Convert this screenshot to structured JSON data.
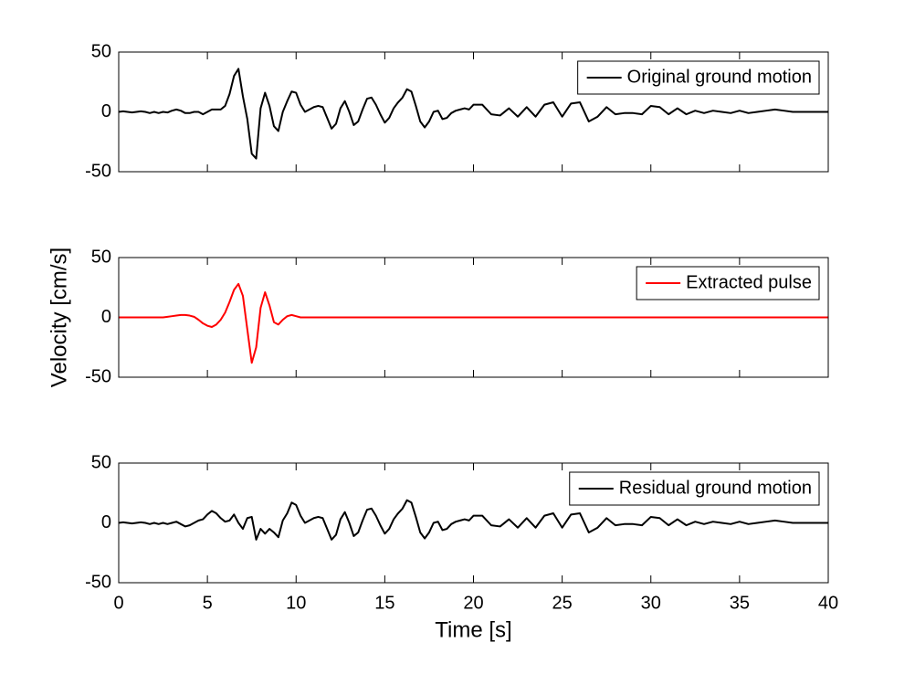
{
  "chart_data": [
    {
      "type": "line",
      "x": [
        0,
        0.25,
        0.5,
        0.75,
        1,
        1.25,
        1.5,
        1.75,
        2,
        2.25,
        2.5,
        2.75,
        3,
        3.25,
        3.5,
        3.75,
        4,
        4.25,
        4.5,
        4.75,
        5,
        5.25,
        5.5,
        5.75,
        6,
        6.25,
        6.5,
        6.75,
        7,
        7.25,
        7.5,
        7.75,
        8,
        8.25,
        8.5,
        8.75,
        9,
        9.25,
        9.5,
        9.75,
        10,
        10.25,
        10.5,
        10.75,
        11,
        11.25,
        11.5,
        11.75,
        12,
        12.25,
        12.5,
        12.75,
        13,
        13.25,
        13.5,
        13.75,
        14,
        14.25,
        14.5,
        14.75,
        15,
        15.25,
        15.5,
        15.75,
        16,
        16.25,
        16.5,
        16.75,
        17,
        17.25,
        17.5,
        17.75,
        18,
        18.25,
        18.5,
        18.75,
        19,
        19.25,
        19.5,
        19.75,
        20,
        20.5,
        21,
        21.5,
        22,
        22.5,
        23,
        23.5,
        24,
        24.5,
        25,
        25.5,
        26,
        26.5,
        27,
        27.5,
        28,
        28.5,
        29,
        29.5,
        30,
        30.5,
        31,
        31.5,
        32,
        32.5,
        33,
        33.5,
        34,
        34.5,
        35,
        35.5,
        36,
        36.5,
        37,
        37.5,
        38,
        38.5,
        39,
        39.5,
        40
      ],
      "series": [
        {
          "name": "Original ground motion",
          "color": "#000000",
          "values": [
            0,
            0.5,
            0,
            -0.5,
            0,
            0.5,
            0,
            -1,
            0,
            -1,
            0,
            -0.5,
            1,
            2,
            1,
            -1,
            -1,
            0,
            0,
            -2,
            0,
            2,
            2,
            2,
            5,
            15,
            30,
            36,
            13,
            -6,
            -35,
            -39,
            3,
            16,
            5,
            -12,
            -16,
            0,
            9,
            17,
            16,
            6,
            0,
            2,
            4,
            5,
            4,
            -5,
            -14,
            -10,
            3,
            9,
            0,
            -11,
            -8,
            2,
            11,
            12,
            6,
            -2,
            -9,
            -5,
            3,
            8,
            12,
            19,
            17,
            5,
            -8,
            -13,
            -8,
            0,
            1,
            -6,
            -5,
            -1,
            1,
            2,
            3,
            2,
            6,
            6,
            -2,
            -3,
            3,
            -4,
            4,
            -4,
            6,
            8,
            -4,
            7,
            8,
            -8,
            -4,
            4,
            -2,
            -1,
            -1,
            -2,
            5,
            4,
            -2,
            3,
            -2,
            1,
            -1,
            1,
            0,
            -1,
            1,
            -1,
            0,
            1,
            2,
            1,
            0,
            0,
            0,
            0,
            0
          ]
        }
      ],
      "xlim": [
        0,
        40
      ],
      "xticks": [
        0,
        5,
        10,
        15,
        20,
        25,
        30,
        35,
        40
      ],
      "ylim": [
        -50,
        50
      ],
      "yticks": [
        -50,
        0,
        50
      ],
      "legend": "upper right"
    },
    {
      "type": "line",
      "x": [
        0,
        0.25,
        0.5,
        0.75,
        1,
        1.25,
        1.5,
        1.75,
        2,
        2.25,
        2.5,
        2.75,
        3,
        3.25,
        3.5,
        3.75,
        4,
        4.25,
        4.5,
        4.75,
        5,
        5.25,
        5.5,
        5.75,
        6,
        6.25,
        6.5,
        6.75,
        7,
        7.25,
        7.5,
        7.75,
        8,
        8.25,
        8.5,
        8.75,
        9,
        9.25,
        9.5,
        9.75,
        10,
        10.25,
        10.5,
        10.75,
        11,
        11.25,
        11.5,
        11.75,
        12,
        12.25,
        12.5,
        12.75,
        13,
        13.25,
        13.5,
        13.75,
        14,
        14.25,
        14.5,
        14.75,
        15,
        15.25,
        15.5,
        15.75,
        16,
        16.25,
        16.5,
        16.75,
        17,
        17.25,
        17.5,
        17.75,
        18,
        18.25,
        18.5,
        18.75,
        19,
        19.25,
        19.5,
        19.75,
        20,
        20.5,
        21,
        21.5,
        22,
        22.5,
        23,
        23.5,
        24,
        24.5,
        25,
        25.5,
        26,
        26.5,
        27,
        27.5,
        28,
        28.5,
        29,
        29.5,
        30,
        30.5,
        31,
        31.5,
        32,
        32.5,
        33,
        33.5,
        34,
        34.5,
        35,
        35.5,
        36,
        36.5,
        37,
        37.5,
        38,
        38.5,
        39,
        39.5,
        40
      ],
      "series": [
        {
          "name": "Extracted pulse",
          "color": "#ff0000",
          "values": [
            0,
            0,
            0,
            0,
            0,
            0,
            0,
            0,
            0,
            0,
            0,
            0.5,
            1,
            1.5,
            2,
            2,
            1.5,
            0.5,
            -2,
            -5,
            -7,
            -8,
            -6,
            -2,
            4,
            13,
            23,
            28,
            18,
            -10,
            -38,
            -25,
            8,
            21,
            10,
            -4,
            -6,
            -2,
            1,
            2,
            1,
            0,
            0,
            0,
            0,
            0,
            0,
            0,
            0,
            0,
            0,
            0,
            0,
            0,
            0,
            0,
            0,
            0,
            0,
            0,
            0,
            0,
            0,
            0,
            0,
            0,
            0,
            0,
            0,
            0,
            0,
            0,
            0,
            0,
            0,
            0,
            0,
            0,
            0,
            0,
            0,
            0,
            0,
            0,
            0,
            0,
            0,
            0,
            0,
            0,
            0,
            0,
            0,
            0,
            0,
            0,
            0,
            0,
            0,
            0,
            0,
            0,
            0,
            0,
            0,
            0,
            0,
            0,
            0,
            0,
            0,
            0,
            0,
            0,
            0,
            0,
            0,
            0,
            0,
            0,
            0
          ]
        }
      ],
      "xlim": [
        0,
        40
      ],
      "xticks": [
        0,
        5,
        10,
        15,
        20,
        25,
        30,
        35,
        40
      ],
      "ylim": [
        -50,
        50
      ],
      "yticks": [
        -50,
        0,
        50
      ],
      "ylabel": "Velocity [cm/s]",
      "legend": "upper right"
    },
    {
      "type": "line",
      "x": [
        0,
        0.25,
        0.5,
        0.75,
        1,
        1.25,
        1.5,
        1.75,
        2,
        2.25,
        2.5,
        2.75,
        3,
        3.25,
        3.5,
        3.75,
        4,
        4.25,
        4.5,
        4.75,
        5,
        5.25,
        5.5,
        5.75,
        6,
        6.25,
        6.5,
        6.75,
        7,
        7.25,
        7.5,
        7.75,
        8,
        8.25,
        8.5,
        8.75,
        9,
        9.25,
        9.5,
        9.75,
        10,
        10.25,
        10.5,
        10.75,
        11,
        11.25,
        11.5,
        11.75,
        12,
        12.25,
        12.5,
        12.75,
        13,
        13.25,
        13.5,
        13.75,
        14,
        14.25,
        14.5,
        14.75,
        15,
        15.25,
        15.5,
        15.75,
        16,
        16.25,
        16.5,
        16.75,
        17,
        17.25,
        17.5,
        17.75,
        18,
        18.25,
        18.5,
        18.75,
        19,
        19.25,
        19.5,
        19.75,
        20,
        20.5,
        21,
        21.5,
        22,
        22.5,
        23,
        23.5,
        24,
        24.5,
        25,
        25.5,
        26,
        26.5,
        27,
        27.5,
        28,
        28.5,
        29,
        29.5,
        30,
        30.5,
        31,
        31.5,
        32,
        32.5,
        33,
        33.5,
        34,
        34.5,
        35,
        35.5,
        36,
        36.5,
        37,
        37.5,
        38,
        38.5,
        39,
        39.5,
        40
      ],
      "series": [
        {
          "name": "Residual ground motion",
          "color": "#000000",
          "values": [
            0,
            0.5,
            0,
            -0.5,
            0,
            0.5,
            0,
            -1,
            0,
            -1,
            0,
            -1,
            0,
            1,
            -1,
            -3,
            -2,
            0,
            2,
            3,
            7,
            10,
            8,
            4,
            1,
            2,
            7,
            0,
            -5,
            4,
            5,
            -14,
            -5,
            -9,
            -5,
            -8,
            -12,
            2,
            8,
            17,
            15,
            6,
            0,
            2,
            4,
            5,
            4,
            -5,
            -14,
            -10,
            3,
            9,
            0,
            -11,
            -8,
            2,
            11,
            12,
            6,
            -2,
            -9,
            -5,
            3,
            8,
            12,
            19,
            17,
            5,
            -8,
            -13,
            -8,
            0,
            1,
            -6,
            -5,
            -1,
            1,
            2,
            3,
            2,
            6,
            6,
            -2,
            -3,
            3,
            -4,
            4,
            -4,
            6,
            8,
            -4,
            7,
            8,
            -8,
            -4,
            4,
            -2,
            -1,
            -1,
            -2,
            5,
            4,
            -2,
            3,
            -2,
            1,
            -1,
            1,
            0,
            -1,
            1,
            -1,
            0,
            1,
            2,
            1,
            0,
            0,
            0,
            0,
            0
          ]
        }
      ],
      "xlim": [
        0,
        40
      ],
      "xticks": [
        0,
        5,
        10,
        15,
        20,
        25,
        30,
        35,
        40
      ],
      "ylim": [
        -50,
        50
      ],
      "yticks": [
        -50,
        0,
        50
      ],
      "xlabel": "Time [s]",
      "legend": "upper right"
    }
  ]
}
